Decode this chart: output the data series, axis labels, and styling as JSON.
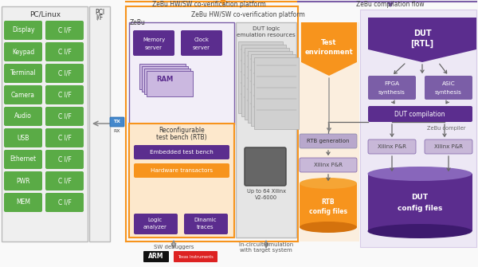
{
  "green": "#5aab46",
  "purple_dark": "#5b2d8e",
  "purple_mid": "#7b5ea7",
  "purple_light": "#d8cce8",
  "orange": "#f7941d",
  "orange_light": "#fde8cc",
  "white": "#ffffff",
  "pc_items": [
    "Display",
    "Keypad",
    "Terminal",
    "Camera",
    "Audio",
    "USB",
    "Ethernet",
    "PWR",
    "MEM"
  ],
  "title_zebu_hw": "ZeBu HW/SW co-verification platform",
  "title_zebu_compile": "ZeBu compilation flow"
}
